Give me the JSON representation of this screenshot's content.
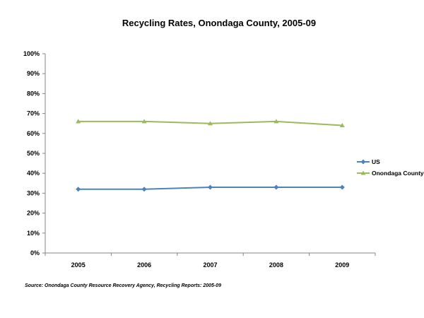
{
  "chart_data": {
    "type": "line",
    "title": "Recycling Rates, Onondaga County, 2005-09",
    "xlabel": "",
    "ylabel": "",
    "categories": [
      "2005",
      "2006",
      "2007",
      "2008",
      "2009"
    ],
    "ylim": [
      0,
      100
    ],
    "yticks": [
      "0%",
      "10%",
      "20%",
      "30%",
      "40%",
      "50%",
      "60%",
      "70%",
      "80%",
      "90%",
      "100%"
    ],
    "grid": false,
    "legend_position": "right",
    "series": [
      {
        "name": "US",
        "values": [
          32,
          32,
          33,
          33,
          33
        ],
        "color": "#4F81BD",
        "marker": "diamond"
      },
      {
        "name": "Onondaga County",
        "values": [
          66,
          66,
          65,
          66,
          64
        ],
        "color": "#9BBB59",
        "marker": "triangle"
      }
    ],
    "source": "Source: Onondaga County Resource Recovery Agency, Recycling Reports: 2005-09"
  }
}
